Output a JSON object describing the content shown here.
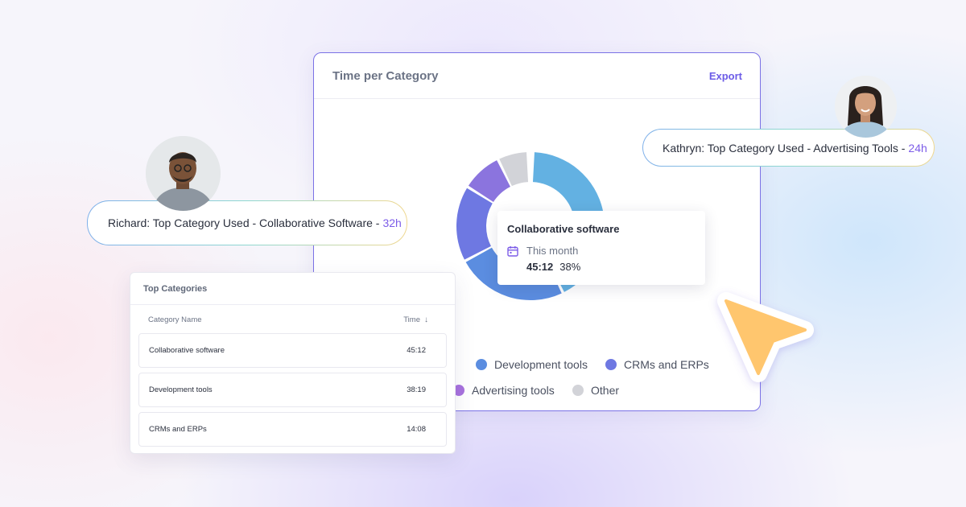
{
  "main_card": {
    "title": "Time per Category",
    "export_label": "Export"
  },
  "chart_data": {
    "type": "pie",
    "slices": [
      {
        "label": "Collaborative software",
        "value": 38,
        "color": "#63b1e2"
      },
      {
        "label": "Development tools",
        "value": 22,
        "color": "#5b8de0"
      },
      {
        "label": "CRMs and ERPs",
        "value": 15,
        "color": "#6e78e2"
      },
      {
        "label": "Advertising tools",
        "value": 8,
        "color": "#8b74de"
      },
      {
        "label": "Other",
        "value": 6,
        "color": "#d2d3d8"
      }
    ],
    "note_hidden_segment": "",
    "legend": [
      {
        "label": "Development tools",
        "color": "#5b8de0"
      },
      {
        "label": "CRMs and ERPs",
        "color": "#6e78e2"
      },
      {
        "label": "Advertising tools",
        "color": "#a872de"
      },
      {
        "label": "Other",
        "color": "#d2d3d8"
      }
    ]
  },
  "tooltip": {
    "title": "Collaborative software",
    "period": "This month",
    "time": "45:12",
    "percent": "38%"
  },
  "richard": {
    "text": "Richard: Top Category Used - Collaborative Software -",
    "hours": "32h"
  },
  "kathryn": {
    "text": "Kathryn: Top Category Used - Advertising Tools -",
    "hours": "24h"
  },
  "top_categories": {
    "title": "Top Categories",
    "col_name": "Category Name",
    "col_time": "Time",
    "rows": [
      {
        "name": "Collaborative software",
        "time": "45:12"
      },
      {
        "name": "Development tools",
        "time": "38:19"
      },
      {
        "name": "CRMs and ERPs",
        "time": "14:08"
      }
    ]
  },
  "colors": {
    "accent": "#6c5ce7",
    "card_border": "#7b72e6",
    "cursor_fill": "#ffc66e"
  },
  "icons": [
    "calendar-icon",
    "sort-down-icon",
    "pointer-cursor-icon"
  ]
}
